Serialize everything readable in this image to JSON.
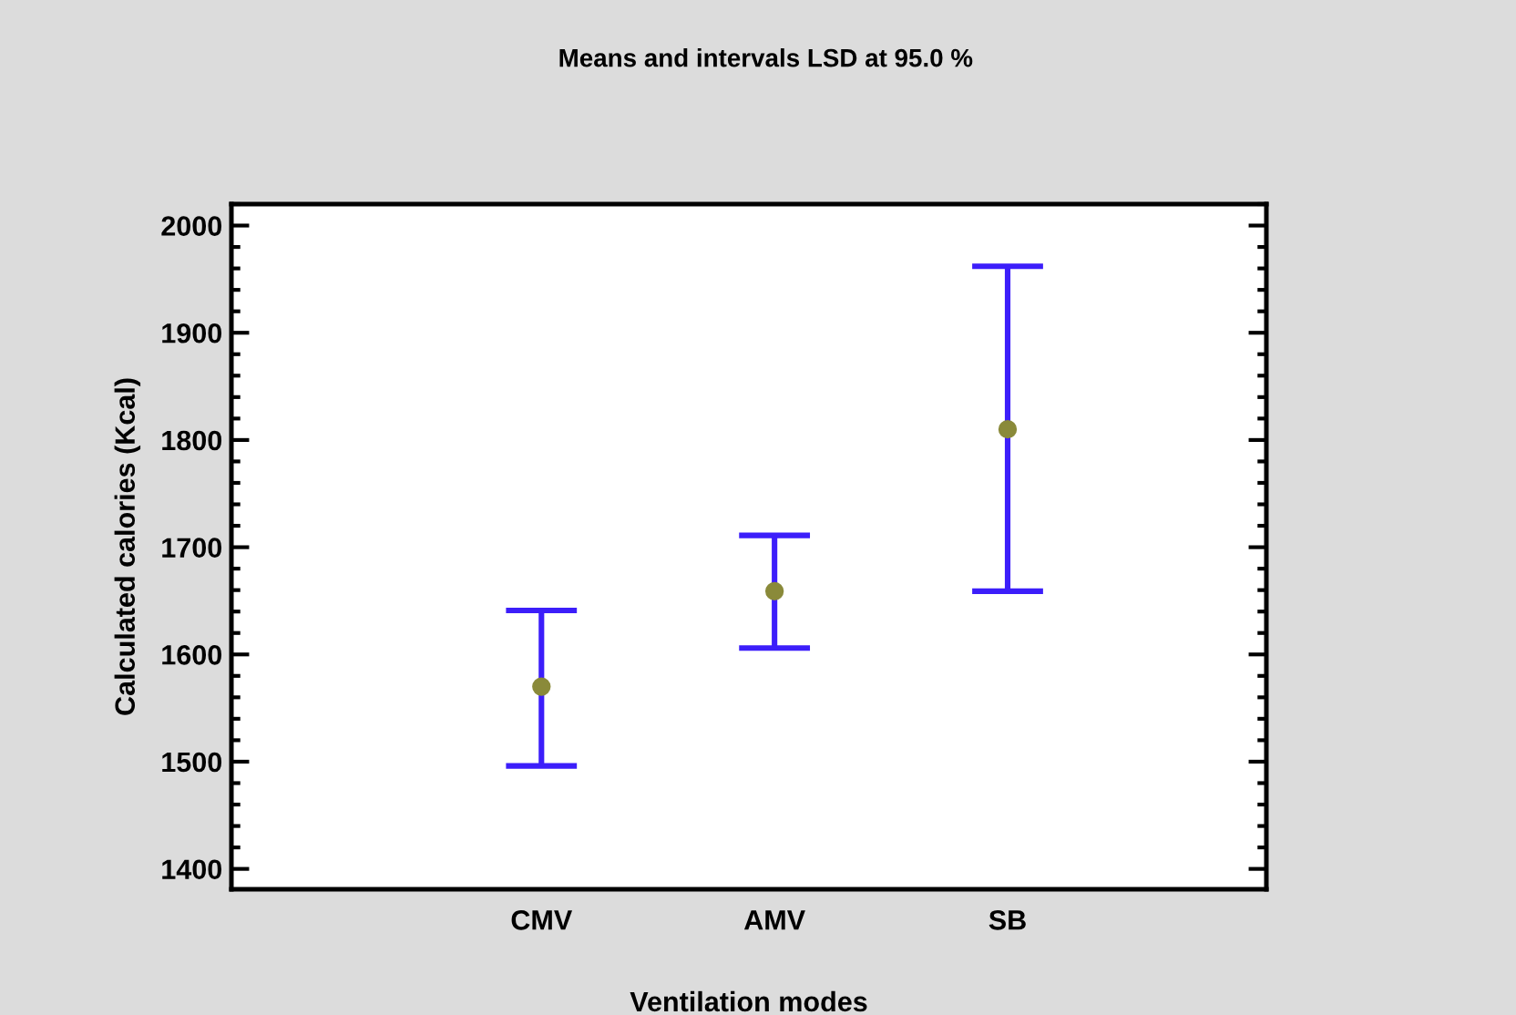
{
  "chart_data": {
    "type": "scatter",
    "title": "Means and intervals LSD at 95.0 %",
    "xlabel": "Ventilation modes",
    "ylabel": "Calculated calories (Kcal)",
    "categories": [
      "CMV",
      "AMV",
      "SB"
    ],
    "series": [
      {
        "color": "#3c1efa",
        "colors": [
          "#8a8a3a",
          "#8a8a3a",
          "#8a8a3a"
        ],
        "values": [
          1570,
          1659,
          1810
        ],
        "errors": [
          [
            1496,
            1641
          ],
          [
            1606,
            1711
          ],
          [
            1659,
            1962
          ]
        ]
      }
    ],
    "ylim": [
      1381,
      2020
    ],
    "yticks": [
      1400,
      1500,
      1600,
      1700,
      1800,
      1900,
      2000
    ],
    "grid": false,
    "legend": false,
    "marker": "circle"
  }
}
